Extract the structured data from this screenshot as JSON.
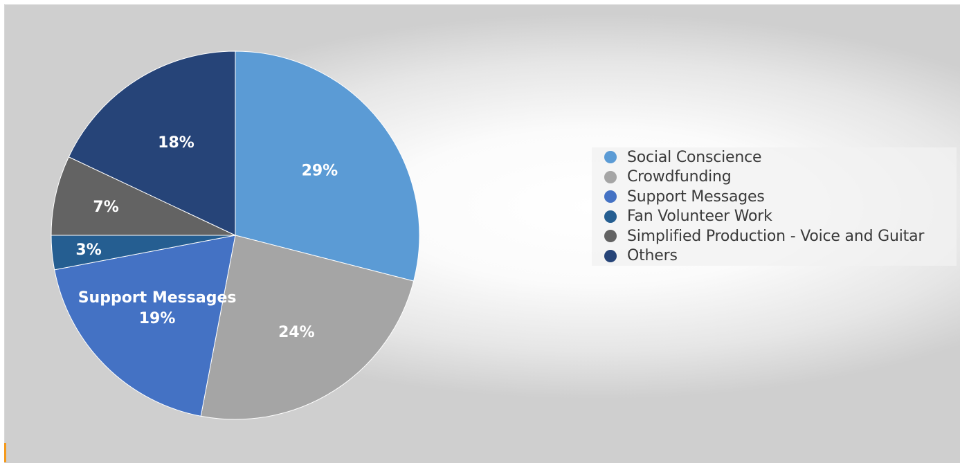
{
  "chart_data": {
    "type": "pie",
    "slices": [
      {
        "name": "Social Conscience",
        "value": 29,
        "label": "29%",
        "color": "#5b9bd5"
      },
      {
        "name": "Crowdfunding",
        "value": 24,
        "label": "24%",
        "color": "#a5a5a5"
      },
      {
        "name": "Support Messages",
        "value": 19,
        "label": "19%",
        "category_label": "Support Messages",
        "color": "#4472c4"
      },
      {
        "name": "Fan Volunteer Work",
        "value": 3,
        "label": "3%",
        "color": "#255e91"
      },
      {
        "name": "Simplified Production - Voice and Guitar",
        "value": 7,
        "label": "7%",
        "color": "#636363"
      },
      {
        "name": "Others",
        "value": 18,
        "label": "18%",
        "color": "#264478"
      }
    ],
    "start_angle": "12 o'clock",
    "direction": "clockwise",
    "legend": "right"
  }
}
